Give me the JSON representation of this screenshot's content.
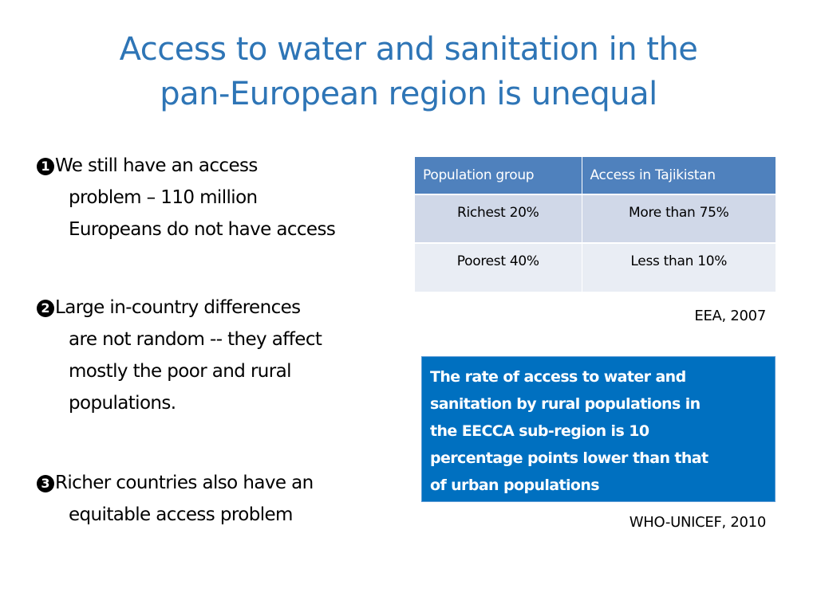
{
  "title": {
    "line1": "Access to water and sanitation in the",
    "line2": "pan-European region is unequal"
  },
  "bullets": [
    {
      "marker": "1",
      "lines": [
        "We still have an access",
        "problem –  110 million",
        "Europeans do not have access"
      ]
    },
    {
      "marker": "2",
      "lines": [
        "Large  in-country differences",
        "are not random -- they affect",
        "mostly the poor and rural",
        "populations."
      ]
    },
    {
      "marker": "3",
      "lines": [
        "Richer countries also have an",
        "equitable access problem"
      ]
    }
  ],
  "table": {
    "headers": [
      "Population group",
      "Access in Tajikistan"
    ],
    "rows": [
      [
        "Richest 20%",
        "More than 75%"
      ],
      [
        "Poorest 40%",
        "Less than 10%"
      ]
    ],
    "source": "EEA, 2007"
  },
  "callout": {
    "lines": [
      "The rate of access to water and",
      "sanitation by rural populations in",
      "the EECCA sub-region is 10",
      "percentage points lower than that",
      "of urban populations"
    ],
    "source": "WHO-UNICEF, 2010"
  },
  "colors": {
    "title": "#2e75b6",
    "table_header": "#4f81bd",
    "table_row": "#d0d8e8",
    "table_row_alt": "#e9edf4",
    "callout_bg": "#0070c0"
  }
}
